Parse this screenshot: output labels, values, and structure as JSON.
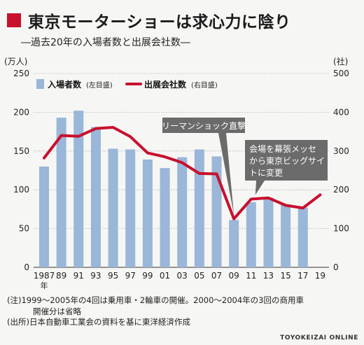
{
  "title": "東京モーターショーは求心力に陰り",
  "subtitle": "―過去20年の入場者数と出展会社数―",
  "accent_color": "#c8102e",
  "bar_color": "#9ab6d8",
  "chart_data": {
    "type": "bar+line",
    "x": [
      "1987",
      "89",
      "91",
      "93",
      "95",
      "97",
      "99",
      "01",
      "03",
      "05",
      "07",
      "09",
      "11",
      "13",
      "15",
      "17",
      "19"
    ],
    "x_sublabel": "年",
    "y_left": {
      "unit": "(万人)",
      "ticks": [
        0,
        50,
        100,
        150,
        200,
        250
      ],
      "ylim": [
        0,
        250
      ]
    },
    "y_right": {
      "unit": "(社)",
      "ticks": [
        0,
        100,
        200,
        300,
        400,
        500
      ],
      "ylim": [
        0,
        500
      ]
    },
    "series": [
      {
        "name": "入場者数",
        "name_note": "(左目盛)",
        "type": "bar",
        "axis": "left",
        "values": [
          130,
          193,
          202,
          181,
          153,
          152,
          139,
          128,
          142,
          152,
          143,
          61,
          84,
          90,
          81,
          77,
          null
        ]
      },
      {
        "name": "出展会社数",
        "name_note": "(右目盛)",
        "type": "line",
        "axis": "right",
        "values": [
          282,
          340,
          338,
          358,
          361,
          337,
          295,
          285,
          270,
          242,
          241,
          125,
          176,
          179,
          160,
          153,
          187
        ]
      }
    ],
    "annotations": [
      {
        "text": [
          "リーマンショック直撃"
        ],
        "target_index": 11
      },
      {
        "text": [
          "会場を幕張メッセ",
          "から東京ビッグサイ",
          "トに変更"
        ],
        "target_index": 12
      }
    ]
  },
  "footnotes": [
    "(注)1999～2005年の4回は乗用車・2輪車の開催。2000～2004年の3回の商用車",
    "開催分は省略",
    "(出所)日本自動車工業会の資料を基に東洋経済作成"
  ],
  "credit": "TOYOKEIZAI ONLINE"
}
